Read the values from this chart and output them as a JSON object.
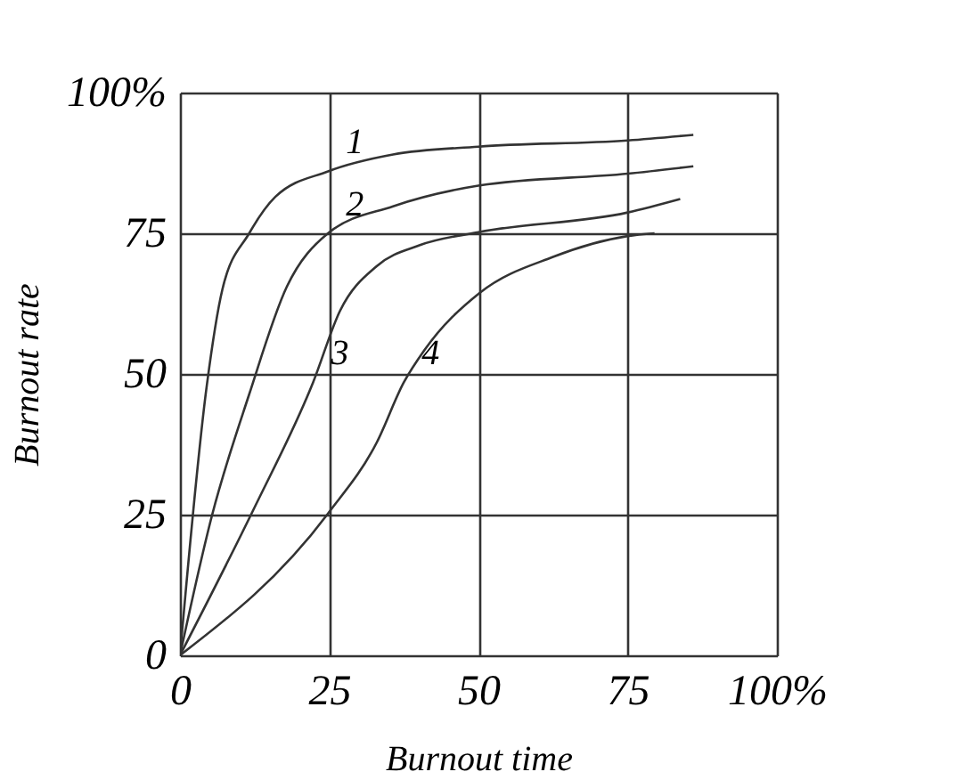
{
  "chart_data": {
    "type": "line",
    "xlabel": "Burnout time",
    "ylabel": "Burnout rate",
    "x": [
      0,
      4.5,
      7.1,
      11.6,
      16,
      24.8,
      35.7,
      50,
      75,
      86
    ],
    "xlim": [
      0,
      100
    ],
    "ylim": [
      0,
      100
    ],
    "xticks": [
      0,
      25,
      50,
      75,
      {
        "value": 100,
        "label": "100%"
      }
    ],
    "yticks": [
      0,
      25,
      50,
      75,
      {
        "value": 100,
        "label": "100%"
      }
    ],
    "grid": true,
    "legend": false,
    "marker": "none",
    "line_style": "solid",
    "series": [
      {
        "color": "#333333",
        "values": [
          0,
          48,
          65,
          75,
          81.5,
          86,
          89,
          90.4,
          91.5,
          92.5
        ]
      },
      {
        "color": "#333333",
        "x": [
          0,
          5.4,
          11.6,
          17.9,
          24.8,
          35.7,
          50.2,
          75,
          86
        ],
        "values": [
          0,
          25,
          46.4,
          65.5,
          75,
          79.8,
          83.5,
          85.6,
          86.9
        ]
      },
      {
        "color": "#333333",
        "x": [
          0,
          12.5,
          22.3,
          26.8,
          33,
          40.2,
          50,
          75,
          83.8
        ],
        "values": [
          0,
          26.3,
          48.5,
          61.2,
          69.2,
          72.9,
          75.2,
          78.7,
          81.1
        ]
      },
      {
        "color": "#333333",
        "x": [
          0,
          24.8,
          33,
          37.5,
          41,
          50.2,
          62.5,
          75,
          79.5
        ],
        "values": [
          0,
          25.2,
          37.9,
          48.5,
          54.3,
          64.4,
          70.8,
          74.5,
          75
        ]
      }
    ],
    "annotations": [
      {
        "text": "1",
        "x": 24.8,
        "y": 86
      },
      {
        "text": "2",
        "x": 24.8,
        "y": 75
      },
      {
        "text": "3",
        "x": 22.3,
        "y": 48.5
      },
      {
        "text": "4",
        "x": 37.5,
        "y": 48.5
      }
    ]
  }
}
